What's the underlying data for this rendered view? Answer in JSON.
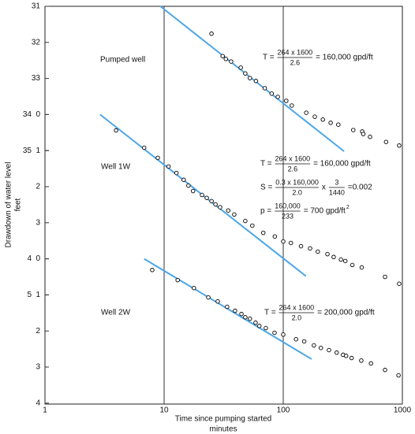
{
  "chart_data": {
    "type": "scatter",
    "xlabel": [
      "Time since pumping started",
      "minutes"
    ],
    "ylabel": [
      "Drawdown of water level",
      "feet"
    ],
    "xscale": "log",
    "xlim": [
      1,
      1000
    ],
    "xticks": [
      1,
      10,
      100,
      1000
    ],
    "grid_x": true,
    "point_color": "#000000",
    "fit_color": "#4da6e8",
    "series": [
      {
        "name": "Pumped well",
        "ylim": [
          31,
          35
        ],
        "yticks": [
          31,
          32,
          33,
          34,
          35
        ],
        "x": [
          25,
          31,
          33,
          36.5,
          44,
          48,
          52.5,
          59,
          70,
          80,
          90,
          106,
          118,
          156,
          184,
          215,
          250,
          290,
          387,
          460,
          470,
          535,
          730,
          940
        ],
        "values": [
          31.76,
          32.38,
          32.46,
          32.53,
          32.7,
          32.86,
          32.99,
          33.07,
          33.27,
          33.42,
          33.51,
          33.62,
          33.75,
          33.95,
          34.06,
          34.14,
          34.23,
          34.28,
          34.43,
          34.47,
          34.54,
          34.62,
          34.76,
          34.86
        ],
        "fit": {
          "x": [
            9.3,
            324
          ],
          "y": [
            31,
            35.02
          ]
        },
        "annotations": [
          [
            {
              "text": "T ="
            },
            {
              "num": "264 x 1600",
              "den": "2.6"
            },
            {
              "text": "= 160,000 gpd/ft"
            }
          ]
        ]
      },
      {
        "name": "Well 1W",
        "ylim": [
          0,
          5
        ],
        "yticks": [
          0,
          1,
          2,
          3,
          4,
          5
        ],
        "x": [
          3.95,
          6.8,
          8.85,
          10.9,
          12.7,
          14.6,
          16,
          17.5,
          20.8,
          22.8,
          25,
          27,
          29.5,
          34.5,
          38.8,
          48,
          55,
          68,
          85,
          100,
          116,
          141,
          168,
          195,
          235,
          265,
          305,
          332,
          380,
          456,
          715,
          940
        ],
        "values": [
          0.44,
          0.92,
          1.2,
          1.44,
          1.62,
          1.81,
          1.97,
          2.12,
          2.23,
          2.31,
          2.4,
          2.49,
          2.57,
          2.66,
          2.77,
          2.95,
          3.08,
          3.28,
          3.38,
          3.52,
          3.56,
          3.65,
          3.71,
          3.8,
          3.87,
          3.95,
          4.02,
          4.06,
          4.17,
          4.24,
          4.5,
          4.69
        ],
        "fit": {
          "x": [
            2.9,
            155
          ],
          "y": [
            0,
            4.48
          ]
        },
        "annotations": [
          [
            {
              "text": "T ="
            },
            {
              "num": "264 x 1600",
              "den": "2.6"
            },
            {
              "text": "= 160,000 gpd/ft"
            }
          ],
          [
            {
              "text": "S ="
            },
            {
              "num": "0.3 x 160,000",
              "den": "2.0"
            },
            {
              "text": "x"
            },
            {
              "num": "3",
              "den": "1440"
            },
            {
              "text": "=0.002"
            }
          ],
          [
            {
              "text": "p ="
            },
            {
              "num": "160,000",
              "den": "233"
            },
            {
              "text": "= 700 gpd/ft"
            },
            {
              "sup": "2"
            }
          ]
        ]
      },
      {
        "name": "Well 2W",
        "ylim": [
          0,
          4
        ],
        "yticks": [
          0,
          1,
          2,
          3,
          4
        ],
        "x": [
          7.95,
          13,
          17.8,
          23.5,
          28.2,
          33.8,
          39.4,
          44.6,
          48,
          52.5,
          58.6,
          63,
          71.4,
          84.5,
          100,
          128,
          150,
          181,
          207,
          242,
          281,
          318,
          337,
          375,
          452,
          545,
          715,
          928
        ],
        "values": [
          0.31,
          0.59,
          0.81,
          1.07,
          1.18,
          1.33,
          1.44,
          1.53,
          1.62,
          1.66,
          1.77,
          1.86,
          1.92,
          2.05,
          2.1,
          2.23,
          2.29,
          2.4,
          2.47,
          2.53,
          2.6,
          2.66,
          2.69,
          2.75,
          2.82,
          2.9,
          3.08,
          3.23
        ],
        "fit": {
          "x": [
            6.8,
            173
          ],
          "y": [
            0,
            2.78
          ]
        },
        "annotations": [
          [
            {
              "text": "T ="
            },
            {
              "num": "264 x 1600",
              "den": "2.0"
            },
            {
              "text": "= 200,000 gpd/ft"
            }
          ]
        ]
      }
    ]
  }
}
